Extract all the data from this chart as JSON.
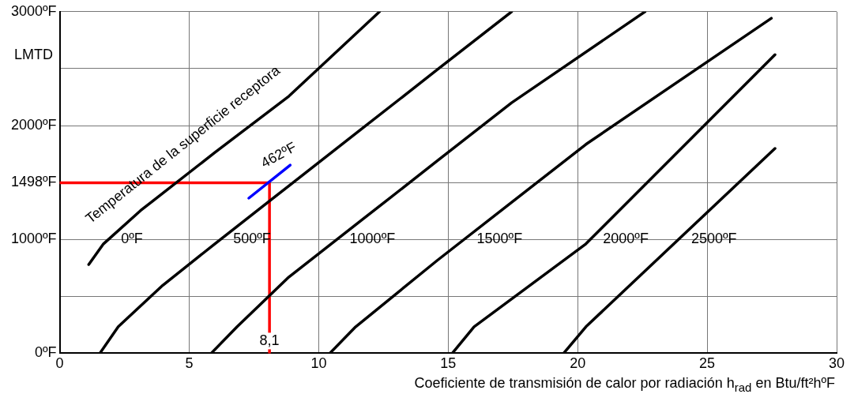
{
  "chart_data": {
    "type": "line",
    "ylabel": "LMTD",
    "xlabel": "Coeficiente de transmisión de calor por radiación h$_{rad}$ en Btu/ft²hºF",
    "xlim": [
      0,
      30
    ],
    "xticks": [
      0,
      5,
      10,
      15,
      20,
      25,
      30
    ],
    "ylim": [
      0,
      3000
    ],
    "yticks": [
      {
        "value": 0,
        "label": "0ºF"
      },
      {
        "value": 500,
        "label": null
      },
      {
        "value": 1000,
        "label": "1000ºF"
      },
      {
        "value": 1498,
        "label": "1498ºF"
      },
      {
        "value": 1500,
        "label": null
      },
      {
        "value": 2000,
        "label": "2000ºF"
      },
      {
        "value": 2500,
        "label": null
      },
      {
        "value": 3000,
        "label": "3000ºF"
      }
    ],
    "grid": true,
    "legend": false,
    "line_style": "solid",
    "series": [
      {
        "name": "0ºF",
        "color": "#000000",
        "x": [
          1.12,
          1.69,
          3.12,
          5.99,
          8.85,
          12.35
        ],
        "values": [
          779,
          961,
          1253,
          1763,
          2258,
          3000
        ]
      },
      {
        "name": "500ºF",
        "color": "#000000",
        "x": [
          1.55,
          2.26,
          3.98,
          5.99,
          8.85,
          11.72,
          14.58,
          17.45
        ],
        "values": [
          0,
          233,
          597,
          961,
          1471,
          1981,
          2491,
          3000
        ]
      },
      {
        "name": "1000ºF",
        "color": "#000000",
        "x": [
          5.85,
          6.85,
          8.85,
          11.72,
          14.58,
          17.45,
          22.6
        ],
        "values": [
          0,
          233,
          670,
          1180,
          1690,
          2200,
          3000
        ]
      },
      {
        "name": "1500ºF",
        "color": "#000000",
        "x": [
          10.43,
          11.43,
          14.58,
          20.32,
          27.48
        ],
        "values": [
          0,
          233,
          816,
          1835,
          2942
        ]
      },
      {
        "name": "2000ºF",
        "color": "#000000",
        "x": [
          15.16,
          16.0,
          20.32,
          27.62
        ],
        "values": [
          0,
          233,
          961,
          2622
        ]
      },
      {
        "name": "2500ºF",
        "color": "#000000",
        "x": [
          19.46,
          20.32,
          27.62
        ],
        "values": [
          0,
          233,
          1799
        ]
      },
      {
        "color": "#0000ff",
        "x": [
          7.3,
          8.9
        ],
        "values": [
          1362,
          1653
        ]
      },
      {
        "color": "#ff0000",
        "x": [
          0,
          8.1,
          8.1
        ],
        "values": [
          1498,
          1498,
          0
        ]
      }
    ],
    "annotations": [
      "Temperatura de la superficie receptora",
      {
        "text": "462ºF",
        "x": 8.9,
        "y": 1653
      },
      {
        "text": "8,1",
        "x": 8.1,
        "y": 0
      }
    ]
  }
}
